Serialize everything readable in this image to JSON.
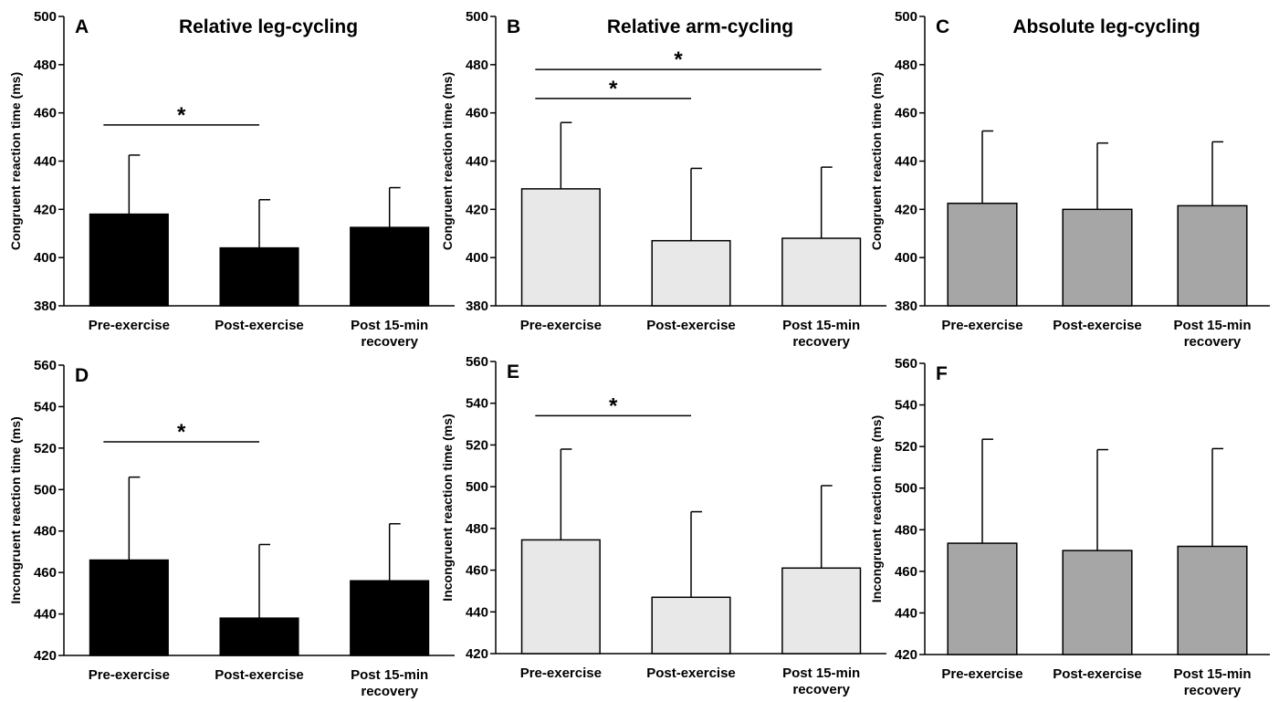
{
  "figure": {
    "colors": {
      "leg": "#000000",
      "arm": "#e8e8e8",
      "abs_leg": "#a6a6a6",
      "outline": "#000000"
    }
  },
  "chart_data": [
    {
      "type": "bar",
      "letter": "A",
      "title": "Relative leg-cycling",
      "ylabel": "Congruent reaction time (ms)",
      "ylim": [
        380,
        500
      ],
      "yticks": [
        380,
        400,
        420,
        440,
        460,
        480,
        500
      ],
      "categories": [
        [
          "Pre-exercise"
        ],
        [
          "Post-exercise"
        ],
        [
          "Post 15-min",
          "recovery"
        ]
      ],
      "values": [
        418,
        404,
        412.5
      ],
      "error": [
        24.5,
        20,
        16.5
      ],
      "color": "#000000",
      "significance": [
        {
          "from": 0,
          "to": 1,
          "y": 455,
          "label": "*"
        }
      ]
    },
    {
      "type": "bar",
      "letter": "B",
      "title": "Relative arm-cycling",
      "ylabel": "Congruent reaction time (ms)",
      "ylim": [
        380,
        500
      ],
      "yticks": [
        380,
        400,
        420,
        440,
        460,
        480,
        500
      ],
      "categories": [
        [
          "Pre-exercise"
        ],
        [
          "Post-exercise"
        ],
        [
          "Post 15-min",
          "recovery"
        ]
      ],
      "values": [
        428.5,
        407,
        408
      ],
      "error": [
        27.5,
        30,
        29.5
      ],
      "color": "#e8e8e8",
      "significance": [
        {
          "from": 0,
          "to": 2,
          "y": 478,
          "label": "*"
        },
        {
          "from": 0,
          "to": 1,
          "y": 466,
          "label": "*"
        }
      ]
    },
    {
      "type": "bar",
      "letter": "C",
      "title": "Absolute leg-cycling",
      "ylabel": "Congruent reaction time (ms)",
      "ylim": [
        380,
        500
      ],
      "yticks": [
        380,
        400,
        420,
        440,
        460,
        480,
        500
      ],
      "categories": [
        [
          "Pre-exercise"
        ],
        [
          "Post-exercise"
        ],
        [
          "Post 15-min",
          "recovery"
        ]
      ],
      "values": [
        422.5,
        420,
        421.5
      ],
      "error": [
        30,
        27.5,
        26.5
      ],
      "color": "#a6a6a6",
      "significance": []
    },
    {
      "type": "bar",
      "letter": "D",
      "title": "",
      "ylabel": "Incongruent reaction time (ms)",
      "ylim": [
        420,
        560
      ],
      "yticks": [
        420,
        440,
        460,
        480,
        500,
        520,
        540,
        560
      ],
      "categories": [
        [
          "Pre-exercise"
        ],
        [
          "Post-exercise"
        ],
        [
          "Post 15-min",
          "recovery"
        ]
      ],
      "values": [
        466,
        438,
        456
      ],
      "error": [
        40,
        35.5,
        27.5
      ],
      "color": "#000000",
      "significance": [
        {
          "from": 0,
          "to": 1,
          "y": 523,
          "label": "*"
        }
      ]
    },
    {
      "type": "bar",
      "letter": "E",
      "title": "",
      "ylabel": "Incongruent reaction time (ms)",
      "ylim": [
        420,
        560
      ],
      "yticks": [
        420,
        440,
        460,
        480,
        500,
        520,
        540,
        560
      ],
      "categories": [
        [
          "Pre-exercise"
        ],
        [
          "Post-exercise"
        ],
        [
          "Post 15-min",
          "recovery"
        ]
      ],
      "values": [
        474.5,
        447,
        461
      ],
      "error": [
        43.5,
        41,
        39.5
      ],
      "color": "#e8e8e8",
      "significance": [
        {
          "from": 0,
          "to": 1,
          "y": 534,
          "label": "*"
        }
      ]
    },
    {
      "type": "bar",
      "letter": "F",
      "title": "",
      "ylabel": "Incongruent reaction time (ms)",
      "ylim": [
        420,
        560
      ],
      "yticks": [
        420,
        440,
        460,
        480,
        500,
        520,
        540,
        560
      ],
      "categories": [
        [
          "Pre-exercise"
        ],
        [
          "Post-exercise"
        ],
        [
          "Post 15-min",
          "recovery"
        ]
      ],
      "values": [
        473.5,
        470,
        472
      ],
      "error": [
        50,
        48.5,
        47
      ],
      "color": "#a6a6a6",
      "significance": []
    }
  ]
}
